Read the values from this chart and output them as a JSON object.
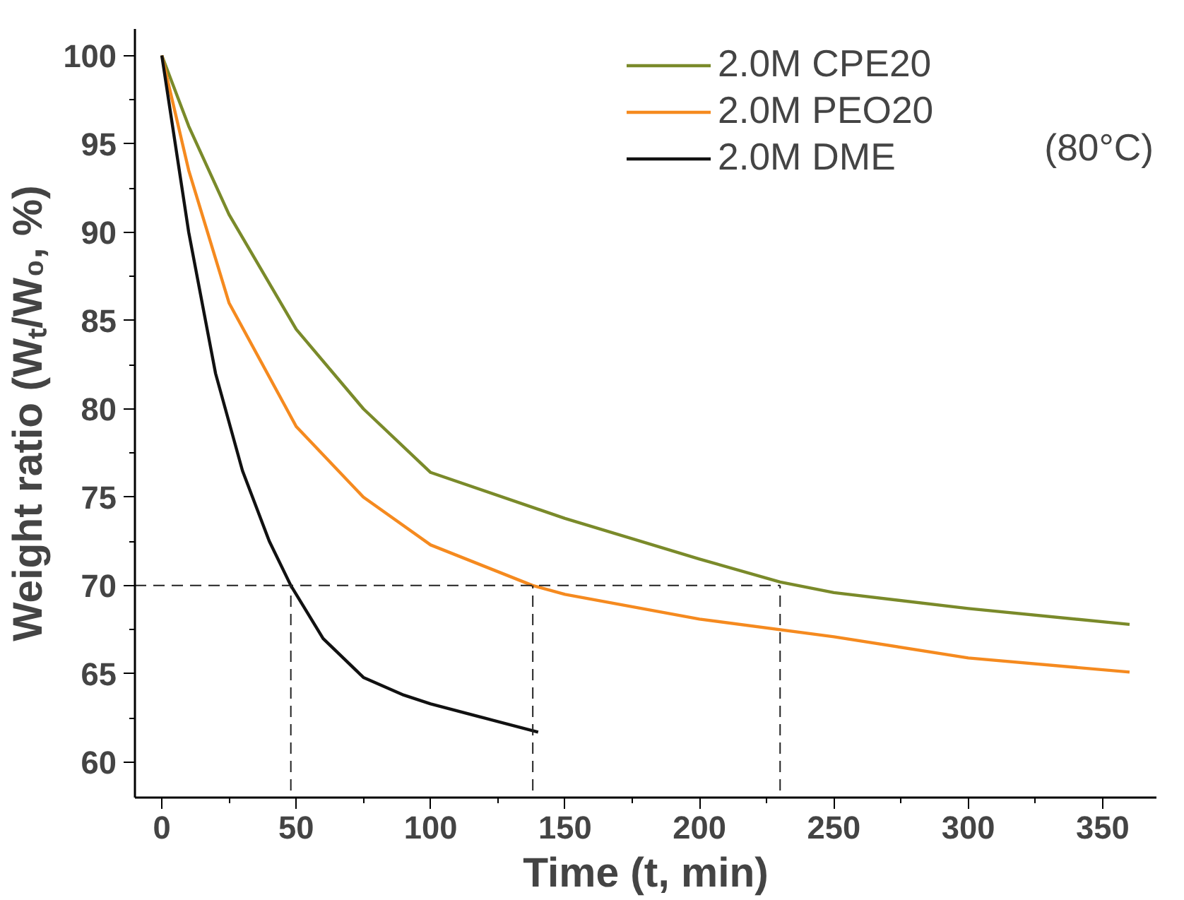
{
  "chart_data": {
    "type": "line",
    "xlabel": "Time (t, min)",
    "ylabel": "Weight ratio (Wₜ/W₀, %)",
    "xlim": [
      -10,
      370
    ],
    "ylim": [
      58,
      101.5
    ],
    "xticks": [
      0,
      50,
      100,
      150,
      200,
      250,
      300,
      350
    ],
    "yticks": [
      60,
      65,
      70,
      75,
      80,
      85,
      90,
      95,
      100
    ],
    "grid": false,
    "legend": "top right",
    "line_style": "solid",
    "annotations": [
      "(80°C)"
    ],
    "series": [
      {
        "name": "2.0M CPE20",
        "color": "#7a8a2a",
        "x": [
          0,
          10,
          25,
          50,
          75,
          100,
          150,
          200,
          230,
          250,
          300,
          360
        ],
        "values": [
          100,
          96,
          91,
          84.5,
          80,
          76.4,
          73.8,
          71.5,
          70.2,
          69.6,
          68.7,
          67.8
        ]
      },
      {
        "name": "2.0M PEO20",
        "color": "#f58a1f",
        "x": [
          0,
          10,
          25,
          50,
          75,
          100,
          138,
          150,
          200,
          250,
          300,
          360
        ],
        "values": [
          100,
          93.5,
          86,
          79,
          75,
          72.3,
          70,
          69.5,
          68.1,
          67.1,
          65.9,
          65.1
        ]
      },
      {
        "name": "2.0M DME",
        "color": "#111111",
        "x": [
          0,
          10,
          20,
          30,
          40,
          48,
          60,
          75,
          90,
          100,
          120,
          140
        ],
        "values": [
          100,
          90,
          82,
          76.5,
          72.5,
          70,
          67,
          64.8,
          63.8,
          63.3,
          62.5,
          61.7
        ]
      },
      {
        "color": "#222222",
        "line_style": "dashed",
        "x": [
          -10,
          230
        ],
        "values": [
          70,
          70
        ]
      },
      {
        "color": "#222222",
        "line_style": "dashed",
        "x": [
          48,
          48
        ],
        "values": [
          58.4,
          70
        ]
      },
      {
        "color": "#222222",
        "line_style": "dashed",
        "x": [
          138,
          138
        ],
        "values": [
          58.4,
          70
        ]
      },
      {
        "color": "#222222",
        "line_style": "dashed",
        "x": [
          230,
          230
        ],
        "values": [
          58.4,
          70
        ]
      }
    ]
  }
}
